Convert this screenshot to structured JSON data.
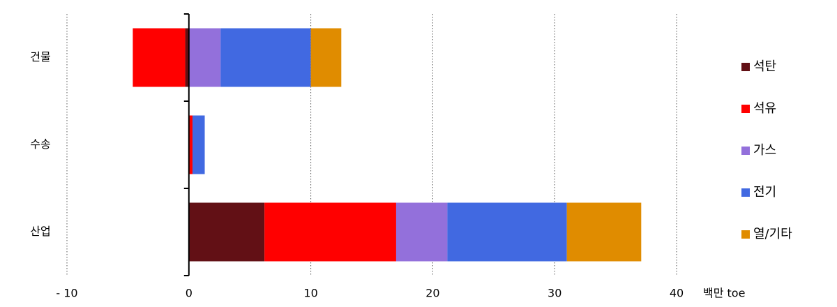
{
  "chart_data": {
    "type": "bar",
    "orientation": "horizontal",
    "stacked": true,
    "categories": [
      "건물",
      "수송",
      "산업"
    ],
    "series": [
      {
        "name": "석탄",
        "color": "#621015",
        "values": [
          -0.3,
          0,
          6.2
        ]
      },
      {
        "name": "석유",
        "color": "#ff0000",
        "values": [
          -4.3,
          0.3,
          10.8
        ]
      },
      {
        "name": "가스",
        "color": "#9370db",
        "values": [
          2.6,
          0,
          4.2
        ]
      },
      {
        "name": "전기",
        "color": "#4169e1",
        "values": [
          7.4,
          1.0,
          9.8
        ]
      },
      {
        "name": "열/기타",
        "color": "#e08c00",
        "values": [
          2.5,
          0,
          6.1
        ]
      }
    ],
    "x_label": "백만 toe",
    "xlim": [
      -10,
      40
    ],
    "xticks": [
      {
        "value": -10,
        "label": "- 10"
      },
      0,
      10,
      20,
      30,
      40
    ],
    "grid": true,
    "legend": "right"
  }
}
